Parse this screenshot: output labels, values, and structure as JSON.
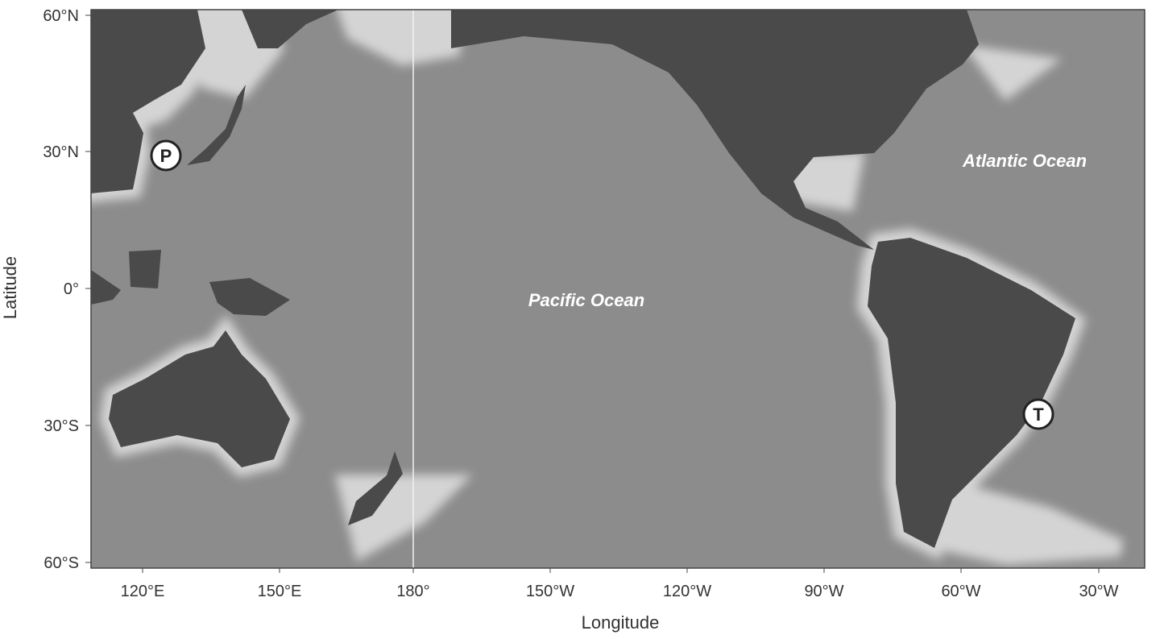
{
  "map": {
    "x_axis": {
      "label": "Longitude",
      "ticks": [
        "120°E",
        "150°E",
        "180°",
        "150°W",
        "120°W",
        "90°W",
        "60°W",
        "30°W"
      ]
    },
    "y_axis": {
      "label": "Latitude",
      "ticks": [
        "60°N",
        "30°N",
        "0°",
        "30°S",
        "60°S"
      ]
    },
    "ocean_labels": {
      "pacific": "Pacific Ocean",
      "atlantic": "Atlantic Ocean"
    },
    "markers": [
      {
        "letter": "P"
      },
      {
        "letter": "T"
      }
    ],
    "reference_line": "180° meridian",
    "colors": {
      "ocean": "#8c8c8c",
      "land": "#4a4a4a",
      "shelf": "#d8d8d8",
      "labels": "#ffffff"
    }
  }
}
